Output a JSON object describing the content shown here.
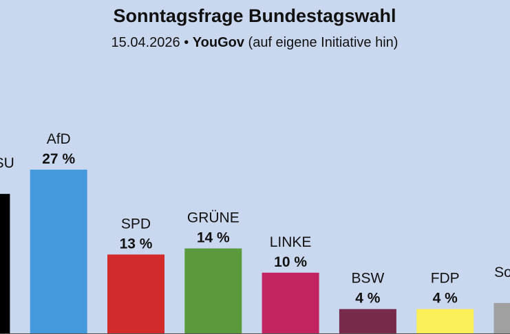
{
  "chart_data": {
    "type": "bar",
    "title": "Sonntagsfrage Bundestagswahl",
    "subtitle": {
      "date": "15.04.2026",
      "separator": "•",
      "institute": "YouGov",
      "note": "(auf eigene Initiative hin)"
    },
    "categories": [
      "CDU/CSU",
      "AfD",
      "SPD",
      "GRÜNE",
      "LINKE",
      "BSW",
      "FDP",
      "Sonstige"
    ],
    "values": [
      23,
      27,
      13,
      14,
      10,
      4,
      4,
      5
    ],
    "value_suffix": " %",
    "colors": [
      "#000000",
      "#4499dd",
      "#d22b2b",
      "#5a9a3c",
      "#c2245f",
      "#782a4b",
      "#fbef5a",
      "#a0a0a0"
    ],
    "background": "#c9d8ef",
    "grid": false,
    "legend": "none"
  }
}
